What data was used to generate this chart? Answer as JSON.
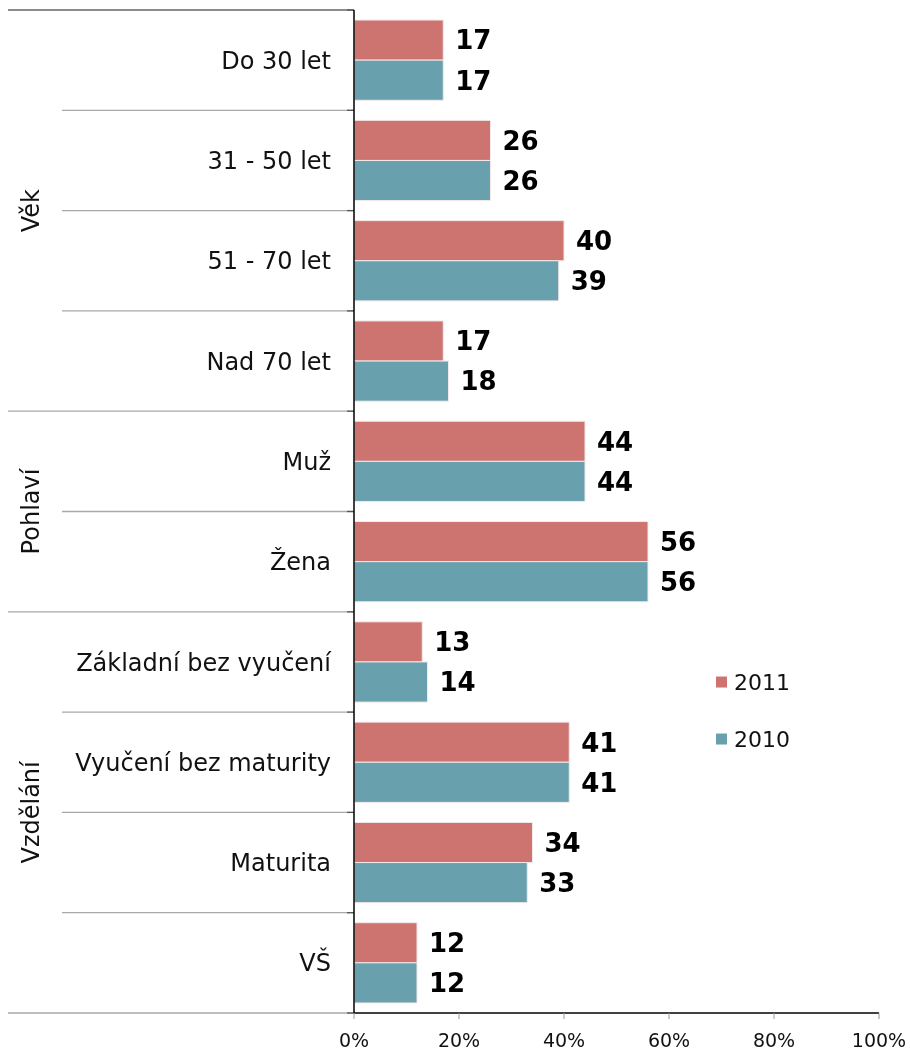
{
  "chart_data": {
    "type": "bar",
    "orientation": "horizontal",
    "categories": [
      "Do 30 let",
      "31 - 50 let",
      "51 - 70 let",
      "Nad 70 let",
      "Muž",
      "Žena",
      "Základní bez vyučení",
      "Vyučení bez maturity",
      "Maturita",
      "VŠ"
    ],
    "series": [
      {
        "name": "2011",
        "color": "#cd7370",
        "values": [
          17,
          26,
          40,
          17,
          44,
          56,
          13,
          41,
          34,
          12
        ]
      },
      {
        "name": "2010",
        "color": "#68a0ae",
        "values": [
          17,
          26,
          39,
          18,
          44,
          56,
          14,
          41,
          33,
          12
        ]
      }
    ],
    "xlim": [
      0,
      100
    ],
    "xticks": [
      {
        "value": 0,
        "label": "0%"
      },
      {
        "value": 20,
        "label": "20%"
      },
      {
        "value": 40,
        "label": "40%"
      },
      {
        "value": 60,
        "label": "60%"
      },
      {
        "value": 80,
        "label": "80%"
      },
      {
        "value": 100,
        "label": "100%"
      }
    ],
    "data_labels": true,
    "legend": "right",
    "annotations": [
      "Věk",
      "Pohlaví",
      "Vzdělání"
    ]
  }
}
